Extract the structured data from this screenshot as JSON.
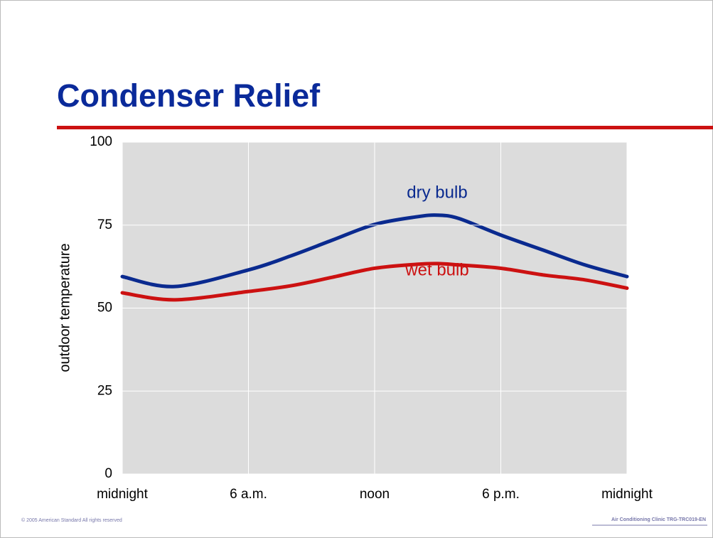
{
  "chart_data": {
    "type": "line",
    "title": "Condenser Relief",
    "ylabel": "outdoor temperature",
    "x": [
      0,
      2.5,
      6,
      8,
      10,
      12,
      14,
      15,
      16,
      18,
      20,
      22,
      24
    ],
    "series": [
      {
        "name": "dry bulb",
        "color": "#0a2a8f",
        "values": [
          59.5,
          56.5,
          61.5,
          65.7,
          70.5,
          75.2,
          77.5,
          78,
          77,
          72,
          67.5,
          63,
          59.5
        ]
      },
      {
        "name": "wet bulb",
        "color": "#cc1111",
        "values": [
          54.6,
          52.5,
          55,
          56.7,
          59.3,
          62,
          63.2,
          63.4,
          63,
          62,
          60,
          58.5,
          56
        ]
      }
    ],
    "xlim": [
      0,
      24
    ],
    "xticks": [
      {
        "value": 0,
        "label": "midnight"
      },
      {
        "value": 6,
        "label": "6 a.m."
      },
      {
        "value": 12,
        "label": "noon"
      },
      {
        "value": 18,
        "label": "6 p.m."
      },
      {
        "value": 24,
        "label": "midnight"
      }
    ],
    "ylim": [
      0,
      100
    ],
    "yticks": [
      0,
      25,
      50,
      75,
      100
    ],
    "grid": true
  },
  "footer": {
    "left": "© 2005 American Standard   All rights reserved",
    "right": "Air Conditioning Clinic TRG-TRC019-EN"
  }
}
